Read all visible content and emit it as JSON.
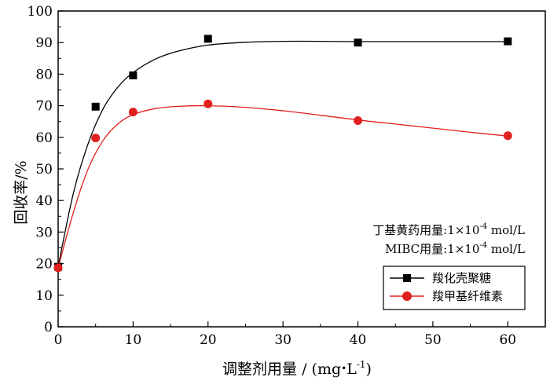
{
  "chart_data": {
    "type": "scatter",
    "xlabel_main": "调整剂用量 / (mg",
    "xlabel_dot": "•",
    "xlabel_unit": "L",
    "xlabel_exp": "-1",
    "xlabel_close": ")",
    "ylabel": "回收率/%",
    "xlim": [
      0,
      65
    ],
    "ylim": [
      0,
      100
    ],
    "xticks": [
      0,
      10,
      20,
      30,
      40,
      50,
      60
    ],
    "yticks": [
      0,
      10,
      20,
      30,
      40,
      50,
      60,
      70,
      80,
      90,
      100
    ],
    "grid": false,
    "legend_position": "bottom-right",
    "annotations": [
      {
        "prefix": "丁基黄药用量:1×10",
        "exp": "-4",
        "suffix": " mol/L"
      },
      {
        "prefix": "MIBC用量:1×10",
        "exp": "-4",
        "suffix": " mol/L"
      }
    ],
    "series": [
      {
        "name": "羧化壳聚糖",
        "color": "#000000",
        "marker": "square",
        "x": [
          0,
          5,
          10,
          20,
          40,
          60
        ],
        "y": [
          19,
          69.7,
          79.6,
          91.2,
          90,
          90.4
        ],
        "curve_x": [
          0,
          2,
          4,
          6,
          8,
          10,
          13,
          16,
          20,
          25,
          30,
          35,
          40,
          50,
          60
        ],
        "curve_y": [
          19,
          42,
          58,
          69,
          76,
          80.5,
          84.8,
          87.3,
          89.2,
          90.1,
          90.4,
          90.4,
          90.3,
          90.3,
          90.3
        ]
      },
      {
        "name": "羧甲基纤维素",
        "color": "#e0201e",
        "marker": "circle",
        "x": [
          0,
          5,
          10,
          20,
          40,
          60
        ],
        "y": [
          18.7,
          59.8,
          68,
          70.6,
          65.3,
          60.5
        ],
        "curve_x": [
          0,
          2,
          4,
          6,
          8,
          10,
          13,
          16,
          20,
          25,
          30,
          35,
          40,
          45,
          50,
          55,
          60
        ],
        "curve_y": [
          18.7,
          36,
          50,
          59,
          64.3,
          67.2,
          69.1,
          69.8,
          70,
          69.5,
          68.4,
          67,
          65.5,
          64.2,
          62.9,
          61.6,
          60.4
        ]
      }
    ]
  }
}
